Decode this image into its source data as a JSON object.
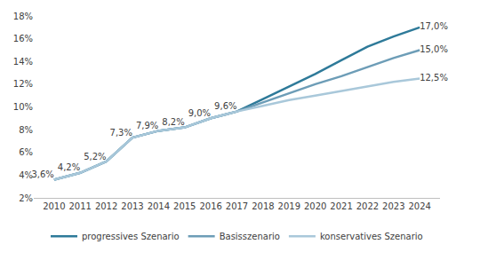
{
  "chart_data": {
    "type": "line",
    "categories": [
      "2010",
      "2011",
      "2012",
      "2013",
      "2014",
      "2015",
      "2016",
      "2017",
      "2018",
      "2019",
      "2020",
      "2021",
      "2022",
      "2023",
      "2024"
    ],
    "series": [
      {
        "name": "progressives Szenario",
        "color": "#2e7a99",
        "values": [
          3.6,
          4.2,
          5.2,
          7.3,
          7.9,
          8.2,
          9.0,
          9.6,
          10.7,
          11.8,
          12.9,
          14.1,
          15.3,
          16.2,
          17.0
        ],
        "value_labels": [
          null,
          null,
          null,
          null,
          null,
          null,
          null,
          null,
          null,
          null,
          null,
          null,
          null,
          null,
          "17,0%"
        ]
      },
      {
        "name": "Basisszenario",
        "color": "#6d9db7",
        "values": [
          3.6,
          4.2,
          5.2,
          7.3,
          7.9,
          8.2,
          9.0,
          9.6,
          10.4,
          11.2,
          12.0,
          12.7,
          13.5,
          14.3,
          15.0
        ],
        "value_labels": [
          "3,6%",
          "4,2%",
          "5,2%",
          "7,3%",
          "7,9%",
          "8,2%",
          "9,0%",
          "9,6%",
          null,
          null,
          null,
          null,
          null,
          null,
          "15,0%"
        ]
      },
      {
        "name": "konservatives Szenario",
        "color": "#a9c8da",
        "values": [
          3.6,
          4.2,
          5.2,
          7.3,
          7.9,
          8.2,
          9.0,
          9.6,
          10.1,
          10.6,
          11.0,
          11.4,
          11.8,
          12.2,
          12.5
        ],
        "value_labels": [
          null,
          null,
          null,
          null,
          null,
          null,
          null,
          null,
          null,
          null,
          null,
          null,
          null,
          null,
          "12,5%"
        ]
      }
    ],
    "ylim": [
      2,
      18
    ],
    "yticks": [
      {
        "value": 2,
        "label": "2%"
      },
      {
        "value": 4,
        "label": "4%"
      },
      {
        "value": 6,
        "label": "6%"
      },
      {
        "value": 8,
        "label": "8%"
      },
      {
        "value": 10,
        "label": "10%"
      },
      {
        "value": 12,
        "label": "12%"
      },
      {
        "value": 14,
        "label": "14%"
      },
      {
        "value": 16,
        "label": "16%"
      },
      {
        "value": 18,
        "label": "18%"
      }
    ],
    "grid": false,
    "legend": "bottom",
    "data_labels": true
  }
}
